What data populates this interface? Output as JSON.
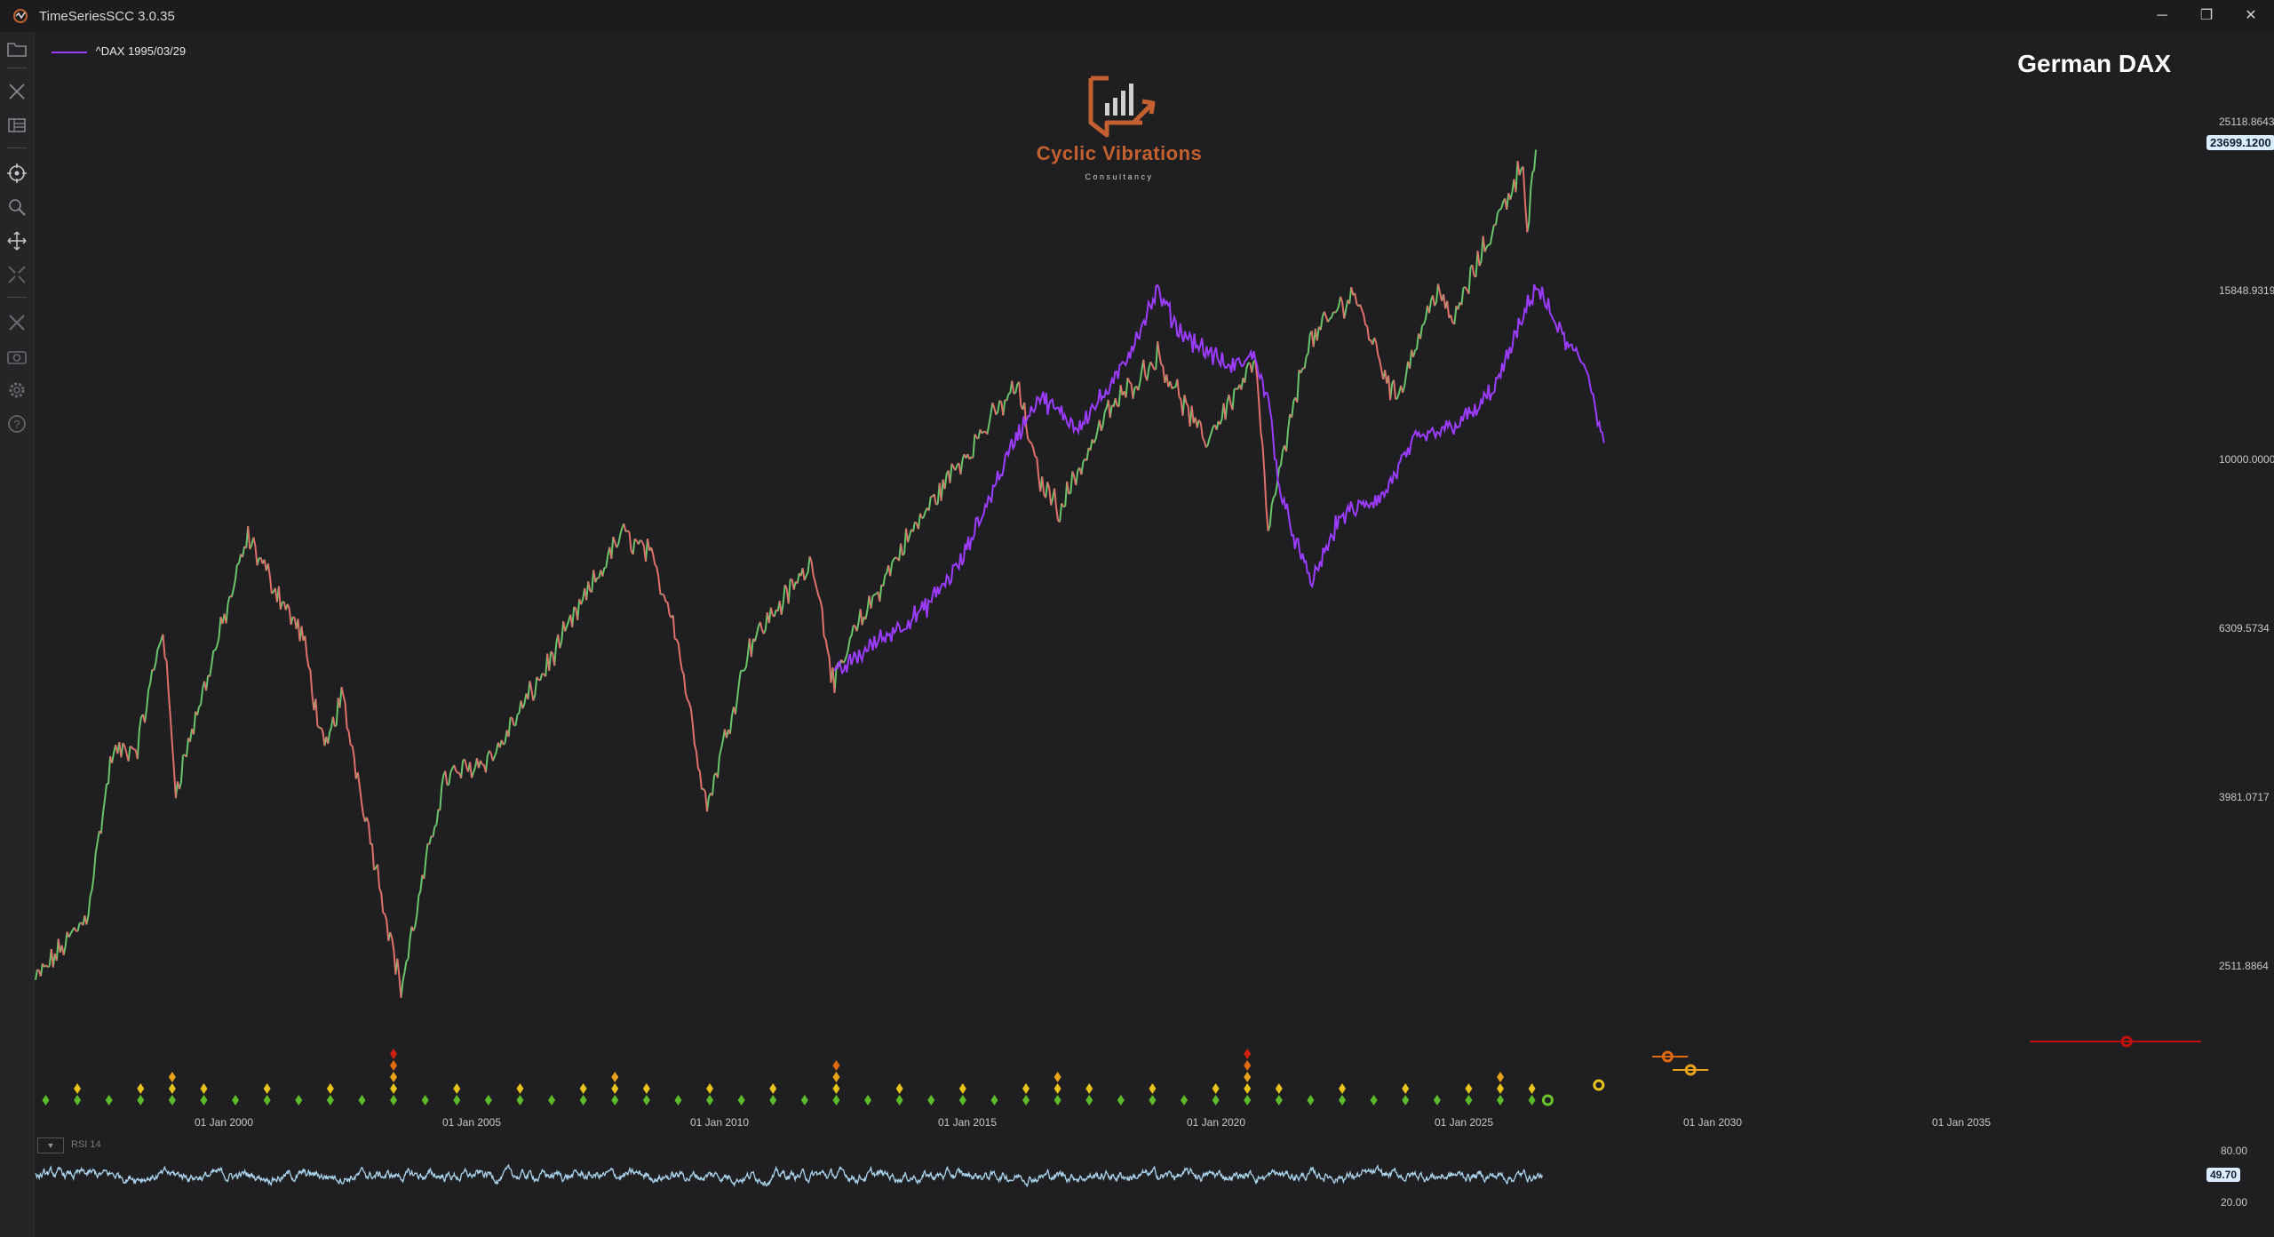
{
  "window": {
    "title": "TimeSeriesSCC 3.0.35",
    "min_label": "─",
    "max_label": "❐",
    "close_label": "✕"
  },
  "toolbar": {
    "icons": [
      "folder-icon",
      "tools-icon",
      "layout-icon",
      "crosshair-icon",
      "zoom-icon",
      "pan-icon",
      "fit-icon",
      "settings-tools-icon",
      "camera-icon",
      "gear-icon",
      "help-icon"
    ]
  },
  "legend": {
    "label": "^DAX 1995/03/29",
    "color": "#9b3cff"
  },
  "chart_title": "German DAX",
  "logo": {
    "name": "Cyclic Vibrations",
    "sub": "Consultancy"
  },
  "colors": {
    "up": "#6ac46a",
    "down": "#e0706a",
    "overlay": "#9b3cff",
    "rsi": "#a9d2ea",
    "background": "#1f1f22"
  },
  "chart_data": {
    "type": "line",
    "y_scale": "log",
    "y_ticks": [
      "25118.8643",
      "15848.9319",
      "10000.0000",
      "6309.5734",
      "3981.0717",
      "2511.8864"
    ],
    "ylim": [
      2000,
      27500
    ],
    "last_price": "23699.1200",
    "x_range": [
      "1996-01-01",
      "2038-06-30"
    ],
    "x_ticks": [
      "01 Jan 2000",
      "01 Jan 2005",
      "01 Jan 2010",
      "01 Jan 2015",
      "01 Jan 2020",
      "01 Jan 2025",
      "01 Jan 2030",
      "01 Jan 2035"
    ],
    "series": [
      {
        "kind": "price",
        "x": [
          "1996-01-01",
          "1997-01-01",
          "1997-07-01",
          "1998-01-01",
          "1998-07-01",
          "1998-10-01",
          "1999-06-01",
          "2000-03-01",
          "2000-09-01",
          "2001-04-01",
          "2001-09-01",
          "2002-01-01",
          "2003-03-01",
          "2004-01-01",
          "2005-01-01",
          "2006-01-01",
          "2007-07-01",
          "2008-01-01",
          "2008-07-01",
          "2009-03-01",
          "2010-01-01",
          "2011-04-01",
          "2011-09-01",
          "2012-01-01",
          "2013-01-01",
          "2014-01-01",
          "2015-04-01",
          "2015-09-01",
          "2016-02-01",
          "2017-01-01",
          "2018-01-01",
          "2018-12-01",
          "2019-12-01",
          "2020-03-01",
          "2020-12-01",
          "2021-11-01",
          "2022-09-01",
          "2023-07-01",
          "2023-10-01",
          "2024-06-01",
          "2025-03-01",
          "2025-04-01",
          "2025-06-01"
        ],
        "y": [
          2250,
          2700,
          4300,
          4400,
          6200,
          3900,
          5500,
          8000,
          7000,
          6000,
          4300,
          5100,
          2200,
          4000,
          4300,
          5500,
          8100,
          7700,
          6400,
          3700,
          5900,
          7500,
          5200,
          6000,
          7800,
          9700,
          12400,
          9500,
          8700,
          11400,
          13500,
          10500,
          13300,
          8200,
          13800,
          16200,
          11900,
          16500,
          14700,
          18400,
          23500,
          19400,
          24300
        ]
      },
      {
        "kind": "overlay",
        "x": [
          "2011-09-01",
          "2012-06-01",
          "2013-06-01",
          "2014-03-01",
          "2015-03-01",
          "2015-09-01",
          "2016-06-01",
          "2017-03-01",
          "2018-01-01",
          "2018-06-01",
          "2019-06-01",
          "2019-12-01",
          "2020-03-15",
          "2020-06-01",
          "2021-01-01",
          "2021-08-01",
          "2022-06-01",
          "2023-01-01",
          "2023-10-01",
          "2024-04-01",
          "2024-09-01",
          "2025-03-01",
          "2025-06-01",
          "2026-01-01",
          "2026-06-01",
          "2026-10-01"
        ],
        "y": [
          5400,
          5900,
          6500,
          7500,
          10500,
          12000,
          11000,
          12500,
          16200,
          14500,
          13000,
          13500,
          11500,
          9000,
          7000,
          8500,
          9000,
          10500,
          11000,
          11500,
          12500,
          15000,
          16500,
          14000,
          13000,
          10500
        ]
      }
    ],
    "rsi": {
      "label": "RSI 14",
      "ticks": [
        "80.00",
        "20.00"
      ],
      "value": "49.70",
      "ylim": [
        0,
        100
      ]
    }
  }
}
